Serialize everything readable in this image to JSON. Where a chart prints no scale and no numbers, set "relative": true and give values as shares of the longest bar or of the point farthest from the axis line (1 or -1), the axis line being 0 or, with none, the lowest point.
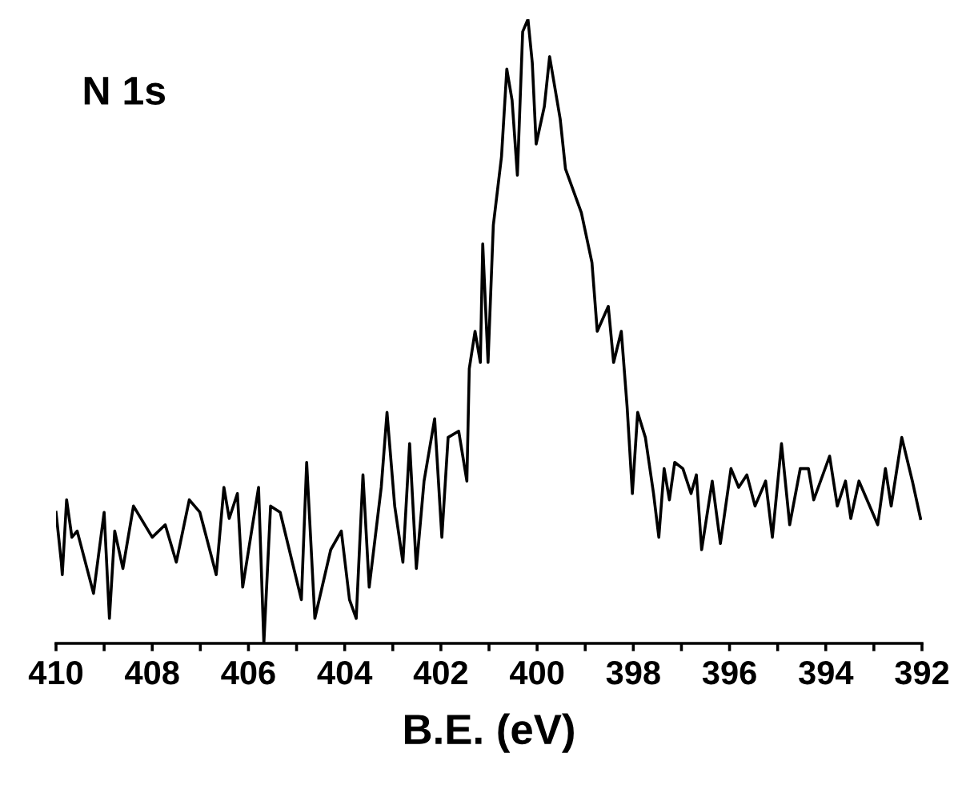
{
  "chart_data": {
    "type": "line",
    "relative": true,
    "xlabel": "B.E. (eV)",
    "annotations": [
      "N 1s"
    ],
    "color": "#000000",
    "grid": false,
    "legend": false,
    "marker": "none",
    "line_style": "solid",
    "xlim": [
      410,
      392
    ],
    "xticks": [
      410,
      {
        "value": 409,
        "label": null
      },
      408,
      {
        "value": 407,
        "label": null
      },
      406,
      {
        "value": 405,
        "label": null
      },
      404,
      {
        "value": 403,
        "label": null
      },
      402,
      {
        "value": 401,
        "label": null
      },
      400,
      {
        "value": 399,
        "label": null
      },
      398,
      {
        "value": 397,
        "label": null
      },
      396,
      {
        "value": 395,
        "label": null
      },
      394,
      {
        "value": 393,
        "label": null
      },
      392
    ],
    "x": [
      410.0,
      409.89,
      409.87,
      409.78,
      409.67,
      409.56,
      409.22,
      409.0,
      408.89,
      408.78,
      408.61,
      408.39,
      408.0,
      407.73,
      407.5,
      407.23,
      407.01,
      406.67,
      406.51,
      406.4,
      406.23,
      406.12,
      405.79,
      405.68,
      405.54,
      405.34,
      404.9,
      404.79,
      404.62,
      404.29,
      404.07,
      403.9,
      403.76,
      403.62,
      403.49,
      403.24,
      403.12,
      402.96,
      402.79,
      402.65,
      402.51,
      402.35,
      402.13,
      401.98,
      401.85,
      401.63,
      401.46,
      401.41,
      401.29,
      401.18,
      401.13,
      401.02,
      400.91,
      400.74,
      400.63,
      400.52,
      400.41,
      400.3,
      400.19,
      400.1,
      400.02,
      399.85,
      399.74,
      399.52,
      399.41,
      399.08,
      398.86,
      398.75,
      398.52,
      398.41,
      398.25,
      398.13,
      398.02,
      397.91,
      397.75,
      397.58,
      397.47,
      397.36,
      397.25,
      397.14,
      396.97,
      396.8,
      396.69,
      396.58,
      396.36,
      396.19,
      395.97,
      395.81,
      395.64,
      395.47,
      395.25,
      395.11,
      394.92,
      394.75,
      394.53,
      394.36,
      394.25,
      393.92,
      393.76,
      393.59,
      393.48,
      393.31,
      392.92,
      392.76,
      392.64,
      392.42,
      392.2,
      392.03
    ],
    "values": [
      0.21,
      0.13,
      0.11,
      0.23,
      0.17,
      0.18,
      0.08,
      0.21,
      0.04,
      0.18,
      0.12,
      0.22,
      0.17,
      0.19,
      0.13,
      0.23,
      0.21,
      0.11,
      0.25,
      0.2,
      0.24,
      0.09,
      0.25,
      0.0,
      0.22,
      0.21,
      0.07,
      0.29,
      0.04,
      0.15,
      0.18,
      0.07,
      0.04,
      0.27,
      0.09,
      0.25,
      0.37,
      0.22,
      0.13,
      0.32,
      0.12,
      0.26,
      0.36,
      0.17,
      0.33,
      0.34,
      0.26,
      0.44,
      0.5,
      0.45,
      0.64,
      0.45,
      0.67,
      0.78,
      0.92,
      0.87,
      0.75,
      0.98,
      1.0,
      0.93,
      0.8,
      0.86,
      0.94,
      0.84,
      0.76,
      0.69,
      0.61,
      0.5,
      0.54,
      0.45,
      0.5,
      0.38,
      0.24,
      0.37,
      0.33,
      0.24,
      0.17,
      0.28,
      0.23,
      0.29,
      0.28,
      0.24,
      0.27,
      0.15,
      0.26,
      0.16,
      0.28,
      0.25,
      0.27,
      0.22,
      0.26,
      0.17,
      0.32,
      0.19,
      0.28,
      0.28,
      0.23,
      0.3,
      0.22,
      0.26,
      0.2,
      0.26,
      0.19,
      0.28,
      0.22,
      0.33,
      0.26,
      0.2
    ]
  }
}
